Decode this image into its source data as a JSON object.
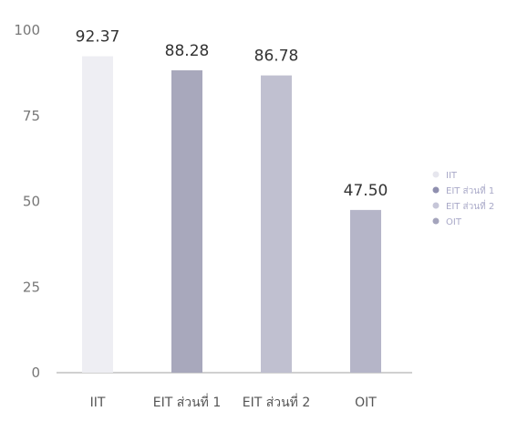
{
  "chart_data": {
    "type": "bar",
    "categories": [
      "IIT",
      "EIT ส่วนที่ 1",
      "EIT ส่วนที่ 2",
      "OIT"
    ],
    "values": [
      92.37,
      88.28,
      86.78,
      47.5
    ],
    "data_labels": [
      "92.37",
      "88.28",
      "86.78",
      "47.50"
    ],
    "ylim": [
      0,
      100
    ],
    "yticks": [
      "0",
      "25",
      "50",
      "75",
      "100"
    ],
    "grid": false,
    "legend": {
      "position": "right",
      "entries": [
        "IIT",
        "EIT ส่วนที่ 1",
        "EIT ส่วนที่ 2",
        "OIT"
      ]
    },
    "colors": [
      "#eeeef3",
      "#a8a8bc",
      "#c0c0d0",
      "#b5b5c8"
    ],
    "legend_marker_colors": [
      "#e6e6ee",
      "#8f8faf",
      "#c6c6d8",
      "#a4a4bc"
    ]
  }
}
